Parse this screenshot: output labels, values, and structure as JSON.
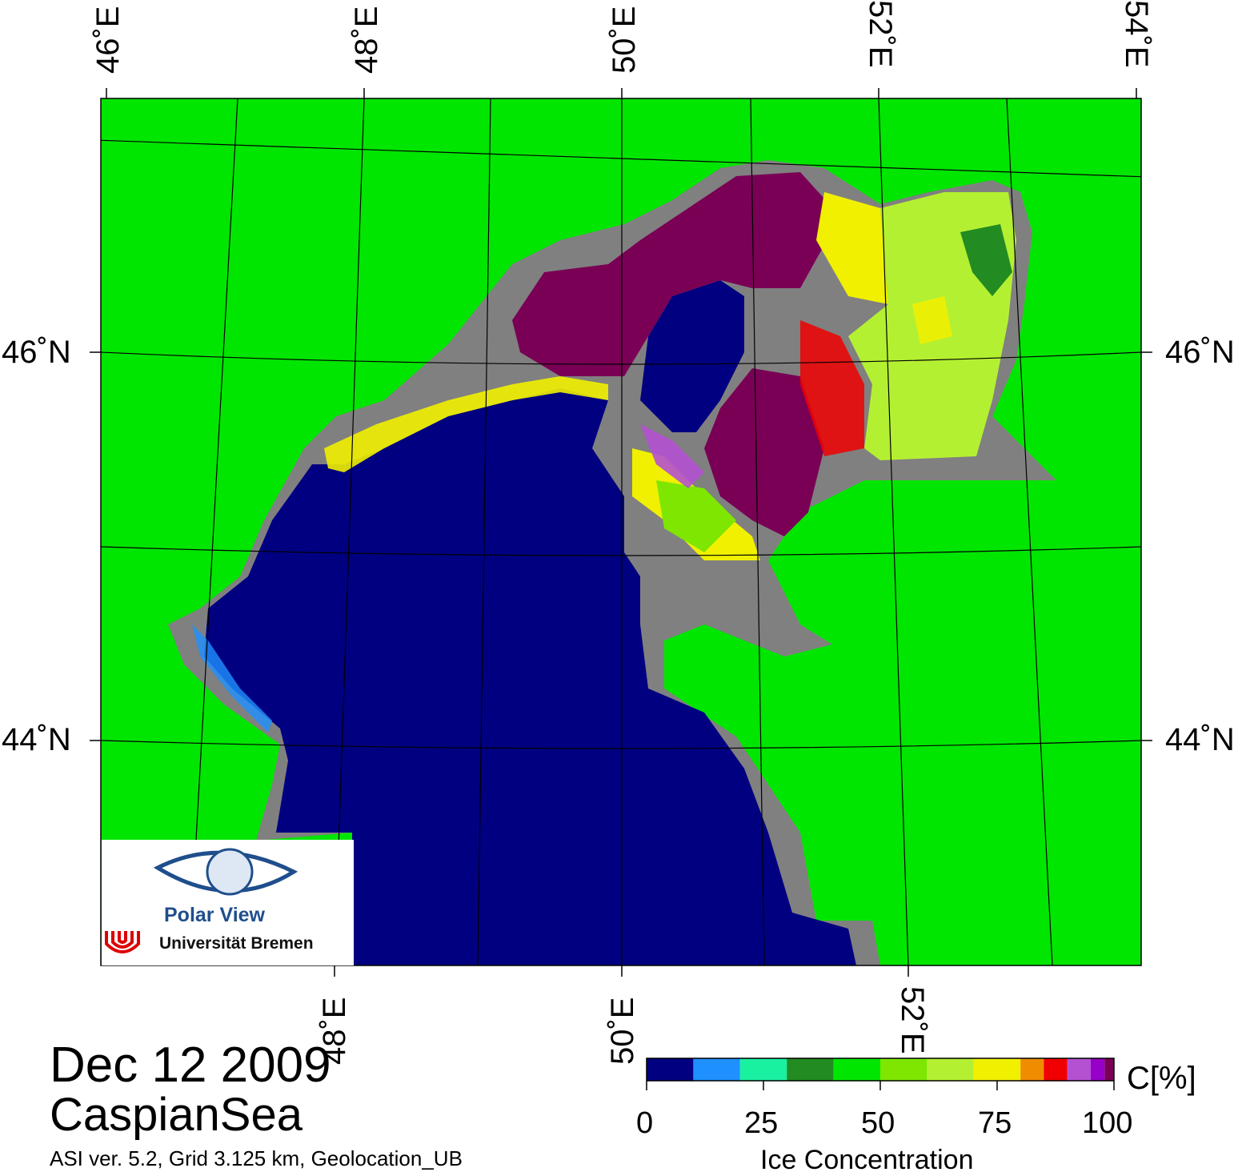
{
  "map": {
    "lon_labels_top": [
      "46˚E",
      "48˚E",
      "50˚E",
      "52˚E",
      "54˚E"
    ],
    "lon_labels_bottom": [
      "48˚E",
      "50˚E",
      "52˚E"
    ],
    "lat_labels_left": [
      "46˚N",
      "44˚N"
    ],
    "lat_labels_right": [
      "46˚N",
      "44˚N"
    ],
    "colors": {
      "land": "#00e600",
      "coast": "#808080",
      "open_water": "#000080",
      "thick_ice": "#7a0055"
    }
  },
  "logo": {
    "name": "Polar View",
    "institution": "Universität Bremen"
  },
  "caption": {
    "date": "Dec 12 2009",
    "region": "CaspianSea",
    "meta": "ASI ver. 5.2,  Grid 3.125 km, Geolocation_UB"
  },
  "colorbar": {
    "title": "Ice Concentration",
    "unit": "C[%]",
    "ticks": [
      "0",
      "25",
      "50",
      "75",
      "100"
    ],
    "colors": [
      "#000080",
      "#1e90ff",
      "#19f0a0",
      "#228b22",
      "#00e600",
      "#7ee600",
      "#b4f032",
      "#f0f000",
      "#f08c00",
      "#f00000",
      "#b450d2",
      "#9600c8",
      "#7a0055"
    ]
  }
}
